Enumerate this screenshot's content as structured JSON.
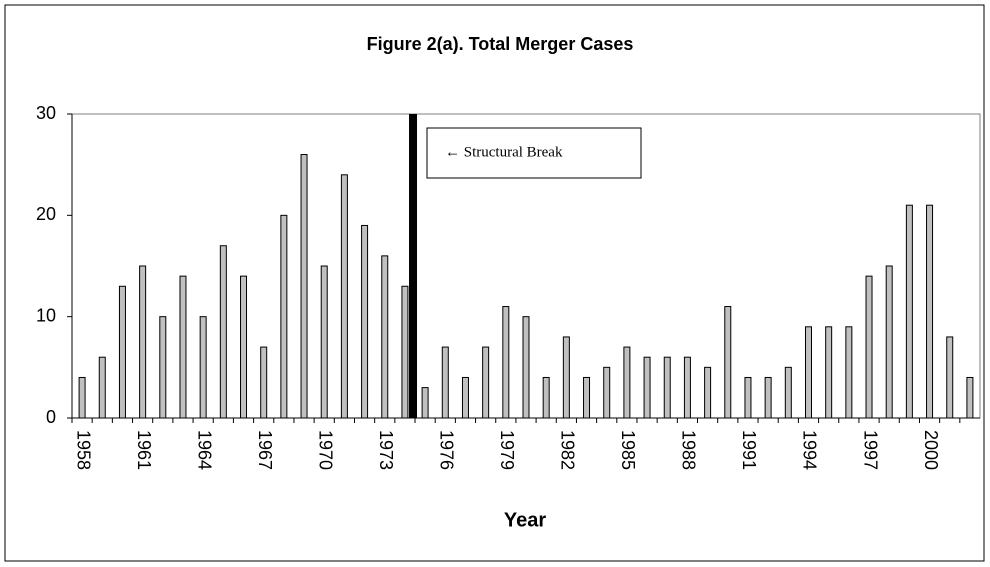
{
  "chart_data": {
    "type": "bar",
    "title": "Figure 2(a). Total Merger Cases",
    "x_label": "Year",
    "annotation": "← Structural Break",
    "categories": [
      "1958",
      null,
      null,
      "1961",
      null,
      null,
      "1964",
      null,
      null,
      "1967",
      null,
      null,
      "1970",
      null,
      null,
      "1973",
      null,
      null,
      "1976",
      null,
      null,
      "1979",
      null,
      null,
      "1982",
      null,
      null,
      "1985",
      null,
      null,
      "1988",
      null,
      null,
      "1991",
      null,
      null,
      "1994",
      null,
      null,
      "1997",
      null,
      null,
      "2000",
      null,
      null
    ],
    "values": [
      4,
      6,
      13,
      15,
      10,
      14,
      10,
      17,
      14,
      7,
      20,
      26,
      15,
      24,
      19,
      16,
      13,
      3,
      7,
      4,
      7,
      11,
      10,
      4,
      8,
      4,
      5,
      7,
      6,
      6,
      6,
      5,
      11,
      4,
      4,
      5,
      9,
      9,
      9,
      14,
      15,
      21,
      21,
      8,
      4
    ],
    "color": "#c0c0c0",
    "ylim": [
      0,
      30
    ],
    "yticks": [
      0,
      10,
      20,
      30
    ],
    "grid": false
  }
}
